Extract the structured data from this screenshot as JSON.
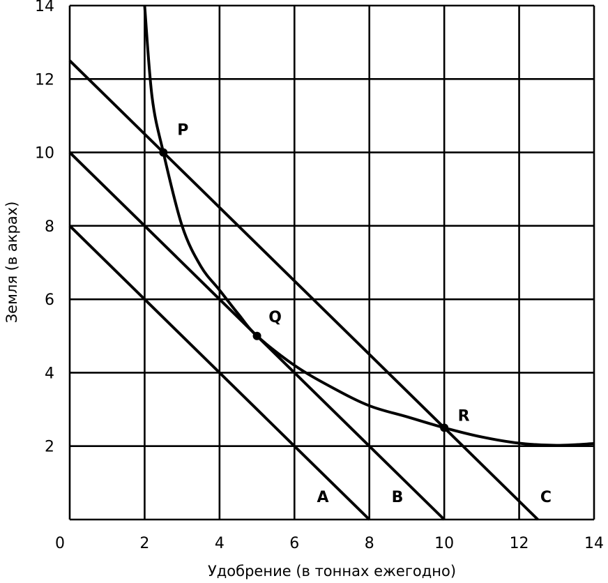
{
  "chart_data": {
    "type": "line",
    "xlabel": "Удобрение (в тоннах ежегодно)",
    "ylabel": "Земля (в акрах)",
    "xlim": [
      0,
      14
    ],
    "ylim": [
      0,
      14
    ],
    "x_ticks": [
      0,
      2,
      4,
      6,
      8,
      10,
      12,
      14
    ],
    "y_ticks": [
      2,
      4,
      6,
      8,
      10,
      12,
      14
    ],
    "grid": true,
    "budget_lines": [
      {
        "name": "A",
        "x": [
          0,
          8
        ],
        "y": [
          8,
          0
        ]
      },
      {
        "name": "B",
        "x": [
          0,
          10
        ],
        "y": [
          10,
          0
        ]
      },
      {
        "name": "C",
        "x": [
          0,
          12.5
        ],
        "y": [
          12.5,
          0
        ]
      }
    ],
    "isoquant": {
      "x": [
        2,
        2.2,
        2.5,
        3,
        3.5,
        4,
        4.5,
        5,
        6,
        7,
        8,
        9,
        10,
        11,
        12,
        13,
        14
      ],
      "y": [
        14,
        11.5,
        10,
        8,
        6.9,
        6.25,
        5.6,
        5,
        4.2,
        3.6,
        3.1,
        2.8,
        2.5,
        2.25,
        2.08,
        2.02,
        2.07
      ]
    },
    "points": [
      {
        "label": "P",
        "x": 2.5,
        "y": 10
      },
      {
        "label": "Q",
        "x": 5,
        "y": 5
      },
      {
        "label": "R",
        "x": 10,
        "y": 2.5
      }
    ]
  }
}
